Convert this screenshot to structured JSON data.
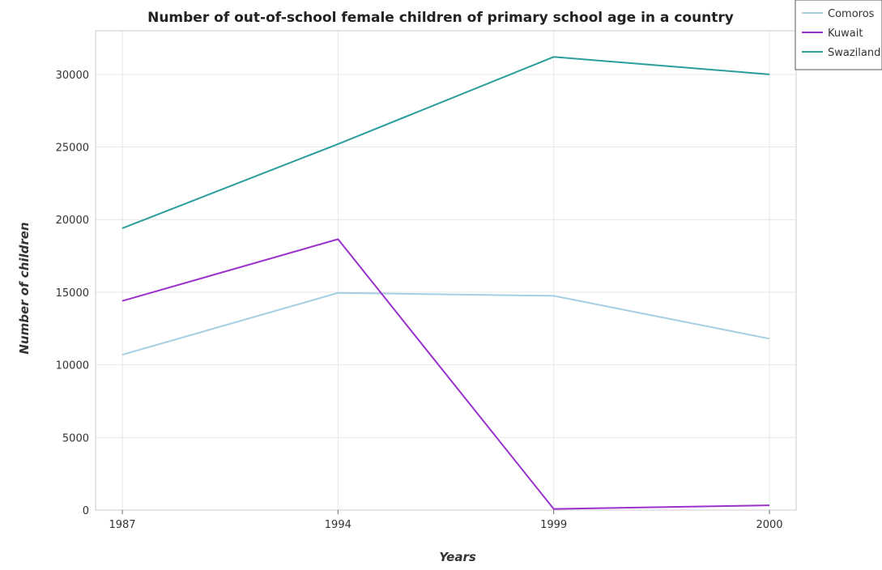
{
  "chart_data": {
    "type": "line",
    "title": "Number of out-of-school female children of primary school age in a country",
    "xlabel": "Years",
    "ylabel": "Number of children",
    "categories": [
      "1987",
      "1994",
      "1999",
      "2000"
    ],
    "ylim": [
      0,
      33000
    ],
    "yticks": [
      0,
      5000,
      10000,
      15000,
      20000,
      25000,
      30000
    ],
    "ytick_labels": [
      "0",
      "5000",
      "10000",
      "15000",
      "20000",
      "25000",
      "30000"
    ],
    "grid": true,
    "legend_position": "top-right",
    "series": [
      {
        "name": "Comoros",
        "color": "#a6cee3",
        "values": [
          10700,
          14950,
          14750,
          11800
        ]
      },
      {
        "name": "Kuwait",
        "color": "#9932cc",
        "values": [
          14400,
          18650,
          80,
          330
        ]
      },
      {
        "name": "Swaziland",
        "color": "#2a9d9d",
        "values": [
          19400,
          25200,
          31200,
          30000
        ]
      }
    ]
  }
}
